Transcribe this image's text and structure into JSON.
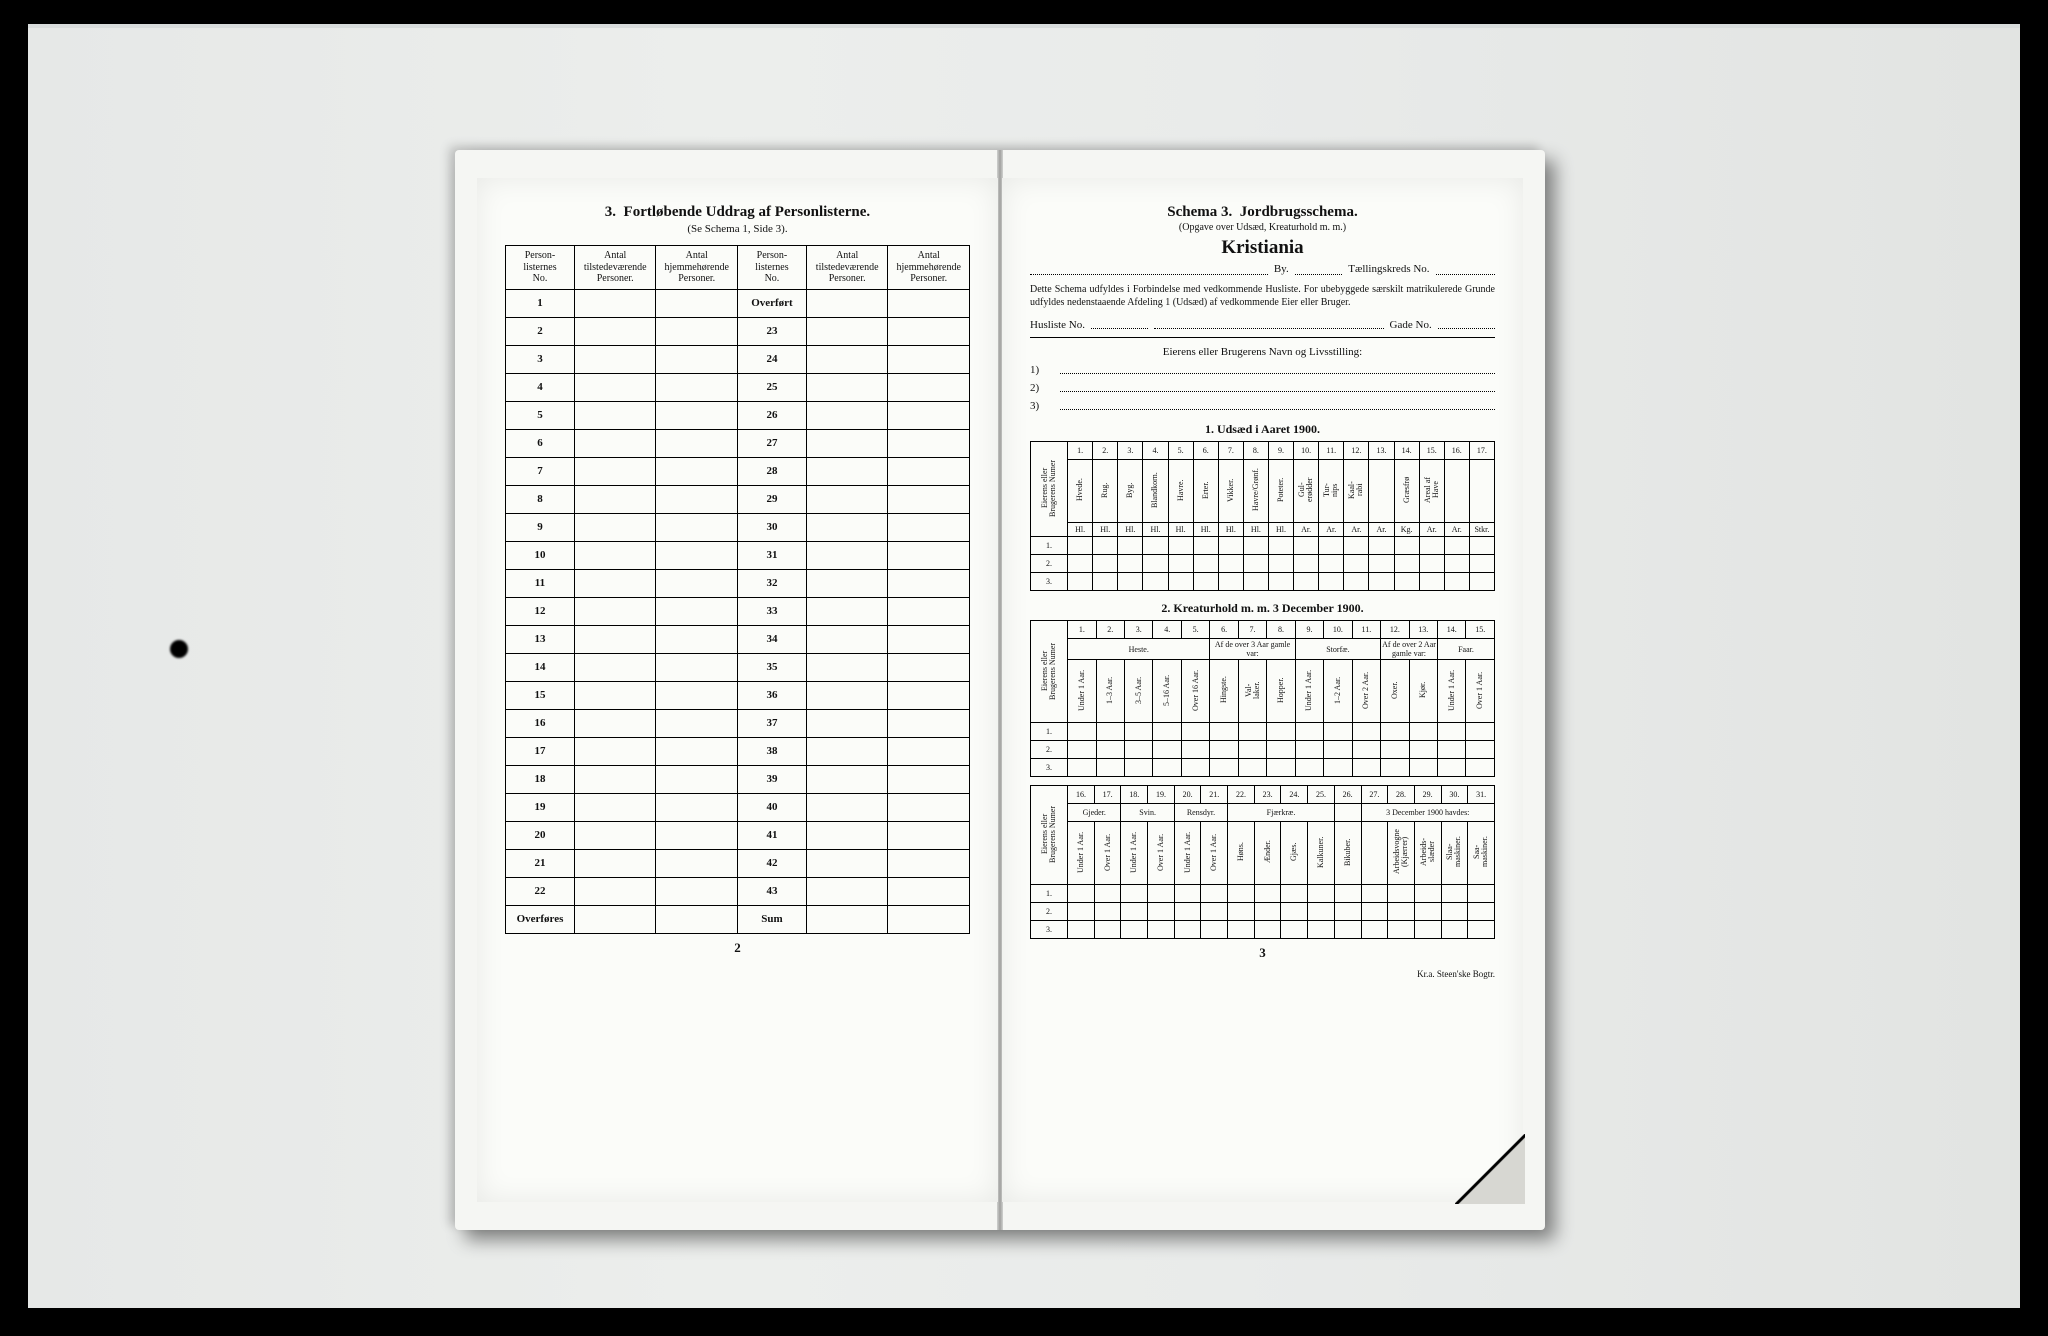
{
  "left": {
    "heading_no": "3.",
    "heading": "Fortløbende Uddrag af Personlisterne.",
    "subheading": "(Se Schema 1, Side 3).",
    "columns": [
      "Person-\nlisternes\nNo.",
      "Antal\ntilstedeværende\nPersoner.",
      "Antal\nhjemmehørende\nPersoner.",
      "Person-\nlisternes\nNo.",
      "Antal\ntilstedeværende\nPersoner.",
      "Antal\nhjemmehørende\nPersoner."
    ],
    "rows_left": [
      "1",
      "2",
      "3",
      "4",
      "5",
      "6",
      "7",
      "8",
      "9",
      "10",
      "11",
      "12",
      "13",
      "14",
      "15",
      "16",
      "17",
      "18",
      "19",
      "20",
      "21",
      "22",
      "Overføres"
    ],
    "rows_right": [
      "Overført",
      "23",
      "24",
      "25",
      "26",
      "27",
      "28",
      "29",
      "30",
      "31",
      "32",
      "33",
      "34",
      "35",
      "36",
      "37",
      "38",
      "39",
      "40",
      "41",
      "42",
      "43",
      "Sum"
    ],
    "page_number": "2"
  },
  "right": {
    "schema_label": "Schema 3.",
    "schema_title": "Jordbrugsschema.",
    "schema_sub": "(Opgave over Udsæd, Kreaturhold m. m.)",
    "city": "Kristiania",
    "by_label": "By.",
    "kreds_label": "Tællingskreds No.",
    "paragraph": "Dette Schema udfyldes i Forbindelse med vedkommende Husliste. For ubebyggede særskilt matrikulerede Grunde udfyldes nedenstaaende Afdeling 1 (Udsæd) af vedkommende Eier eller Bruger.",
    "husliste_label": "Husliste No.",
    "gade_label": "Gade No.",
    "owner_heading": "Eierens eller Brugerens Navn og Livsstilling:",
    "owner_nums": [
      "1)",
      "2)",
      "3)"
    ],
    "section1_title": "1.  Udsæd i Aaret 1900.",
    "section2_title": "2.  Kreaturhold m. m. 3 December 1900.",
    "grid1_nums": [
      "1.",
      "2.",
      "3.",
      "4.",
      "5.",
      "6.",
      "7.",
      "8.",
      "9.",
      "10.",
      "11.",
      "12.",
      "13.",
      "14.",
      "15.",
      "16.",
      "17."
    ],
    "grid1_heads": [
      "Hvede.",
      "Rug.",
      "Byg.",
      "Blandkorn.",
      "Havre.",
      "Erter.",
      "Vikker.",
      "Havre/Grønf.",
      "Poteter.",
      "Gul-\nerødder",
      "Tur-\nnips",
      "Kaal-\nrabi",
      "",
      "Græsfrø",
      "Areal af\nHave",
      "",
      ""
    ],
    "grid1_units": [
      "Hl.",
      "Hl.",
      "Hl.",
      "Hl.",
      "Hl.",
      "Hl.",
      "Hl.",
      "Hl.",
      "Hl.",
      "Ar.",
      "Ar.",
      "Ar.",
      "Ar.",
      "Kg.",
      "Ar.",
      "Ar.",
      "Stkr."
    ],
    "grid_rowheads": [
      "1.",
      "2.",
      "3."
    ],
    "grid2a_nums": [
      "1.",
      "2.",
      "3.",
      "4.",
      "5.",
      "6.",
      "7.",
      "8.",
      "9.",
      "10.",
      "11.",
      "12.",
      "13.",
      "14.",
      "15."
    ],
    "grid2a_group_heste": "Heste.",
    "grid2a_group_storfe": "Storfæ.",
    "grid2a_group_faar": "Faar.",
    "grid2a_sub_af": "Af de over 3 Aar\ngamle var:",
    "grid2a_sub_af2": "Af de over 2 Aar\ngamle var:",
    "grid2a_heads": [
      "Under 1 Aar.",
      "1–3 Aar.",
      "3–5 Aar.",
      "5–16 Aar.",
      "Over 16 Aar.",
      "Hingste.",
      "Val-\nlaker.",
      "Hopper.",
      "Under 1 Aar.",
      "1–2 Aar.",
      "Over 2 Aar.",
      "Oxer.",
      "Kjør.",
      "Under 1 Aar.",
      "Over 1 Aar."
    ],
    "grid2b_nums": [
      "16.",
      "17.",
      "18.",
      "19.",
      "20.",
      "21.",
      "22.",
      "23.",
      "24.",
      "25.",
      "26.",
      "27.",
      "28.",
      "29.",
      "30.",
      "31."
    ],
    "grid2b_group_gjeder": "Gjeder.",
    "grid2b_group_svin": "Svin.",
    "grid2b_group_ren": "Rensdyr.",
    "grid2b_group_fjaer": "Fjærkræ.",
    "grid2b_group_havdes": "3 December 1900 havdes:",
    "grid2b_heads": [
      "Under 1 Aar.",
      "Over 1 Aar.",
      "Under 1 Aar.",
      "Over 1 Aar.",
      "Under 1 Aar.",
      "Over 1 Aar.",
      "Høns.",
      "Ænder.",
      "Gjæs.",
      "Kalkuner.",
      "Bikuber.",
      "",
      "Arbeidsvogne\n(Kjærrer)",
      "Arbeids-\nslæder",
      "Slaa-\nmaskiner.",
      "Saa-\nmaskiner."
    ],
    "page_number": "3",
    "printer": "Kr.a.  Steen'ske Bogtr."
  },
  "colors": {
    "page_bg": "#fbfcf9",
    "book_bg": "#f5f6f3",
    "outer_bg": "#d8dcdc",
    "ink": "#111111",
    "border": "#000000"
  }
}
